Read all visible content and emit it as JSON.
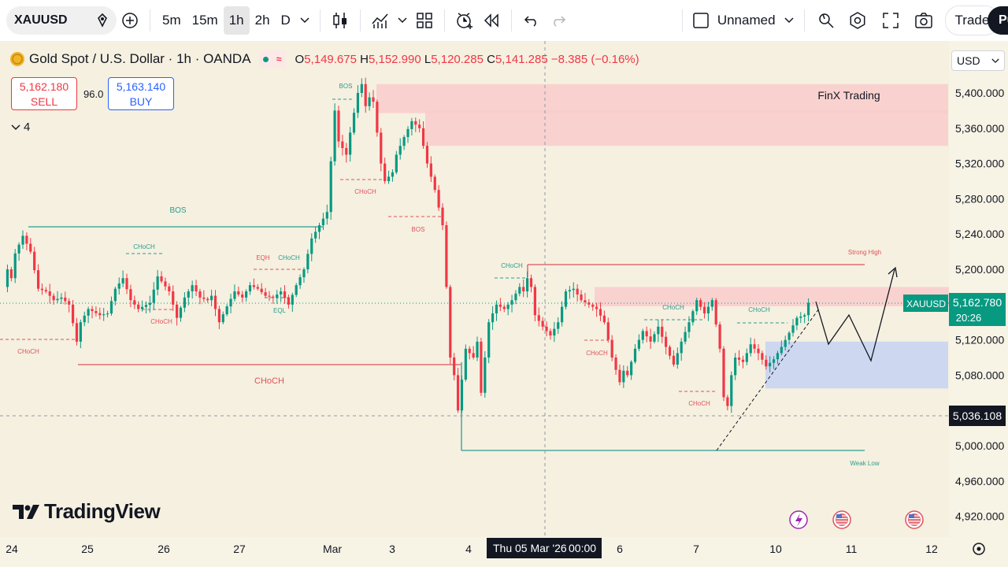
{
  "toolbar": {
    "symbol": "XAUUSD",
    "timeframes": [
      "5m",
      "15m",
      "1h",
      "2h",
      "D"
    ],
    "active_timeframe": "1h",
    "layout_name": "Unnamed",
    "trade_label": "Trade",
    "publish_label": "Pu",
    "icons": [
      "search-icon",
      "add-symbol-icon",
      "chevron-down-icon",
      "candles-icon",
      "indicators-icon",
      "chevron-down-icon",
      "layouts-icon",
      "alert-icon",
      "replay-icon",
      "undo-icon",
      "redo-icon",
      "checkbox-icon",
      "chevron-down-icon",
      "quick-search-icon",
      "settings-icon",
      "fullscreen-icon",
      "camera-icon"
    ]
  },
  "legend": {
    "title": "Gold Spot / U.S. Dollar · 1h · OANDA",
    "open_label": "O",
    "open": "5,149.675",
    "high_label": "H",
    "high": "5,152.990",
    "low_label": "L",
    "low": "5,120.285",
    "close_label": "C",
    "close": "5,141.285",
    "change": "−8.385 (−0.16%)",
    "collapse_count": "4"
  },
  "trade_panel": {
    "sell_price": "5,162.180",
    "sell_label": "SELL",
    "spread": "96.0",
    "buy_price": "5,163.140",
    "buy_label": "BUY"
  },
  "currency": "USD",
  "price_scale": {
    "ticks": [
      "5,400.000",
      "5,360.000",
      "5,320.000",
      "5,280.000",
      "5,240.000",
      "5,200.000",
      "5,120.000",
      "5,080.000",
      "5,000.000",
      "4,960.000",
      "4,920.000"
    ],
    "current_price_symbol": "XAUUSD",
    "current_price": "5,162.780",
    "countdown": "20:26",
    "crosshair_price": "5,036.108"
  },
  "time_scale": {
    "ticks": [
      "24",
      "25",
      "26",
      "27",
      "Mar",
      "3",
      "4",
      "6",
      "7",
      "10",
      "11",
      "12"
    ],
    "crosshair_time": "Thu 05 Mar '26",
    "crosshair_time_hour": "00:00"
  },
  "logo_text": "TradingView",
  "colors": {
    "up": "#089981",
    "down": "#f23645",
    "supply_zone": "#f9cdcd",
    "demand_zone": "#c9d4f2",
    "background": "#f5f0e0"
  },
  "chart_data": {
    "type": "candlestick",
    "instrument": "XAUUSD",
    "interval": "1h",
    "ylim": [
      4910,
      5420
    ],
    "y_ticks": [
      5400,
      5360,
      5320,
      5280,
      5240,
      5200,
      5120,
      5080,
      5000,
      4960,
      4920
    ],
    "x_labels": [
      "24",
      "25",
      "26",
      "27",
      "Mar",
      "3",
      "4",
      "6",
      "7",
      "10",
      "11",
      "12"
    ],
    "last_close": 5162.78,
    "path": [
      [
        0.0,
        5180
      ],
      [
        0.5,
        5200
      ],
      [
        1.0,
        5190
      ],
      [
        1.5,
        5218
      ],
      [
        2.5,
        5238
      ],
      [
        3.5,
        5220
      ],
      [
        4.5,
        5178
      ],
      [
        5.5,
        5175
      ],
      [
        6.5,
        5165
      ],
      [
        7.5,
        5168
      ],
      [
        8.5,
        5160
      ],
      [
        9.5,
        5118
      ],
      [
        10.0,
        5140
      ],
      [
        11.0,
        5155
      ],
      [
        12.5,
        5148
      ],
      [
        13.5,
        5150
      ],
      [
        14.5,
        5178
      ],
      [
        15.5,
        5190
      ],
      [
        16.5,
        5165
      ],
      [
        17.5,
        5155
      ],
      [
        19.0,
        5162
      ],
      [
        20.0,
        5192
      ],
      [
        21.5,
        5175
      ],
      [
        22.5,
        5145
      ],
      [
        23.5,
        5168
      ],
      [
        24.5,
        5182
      ],
      [
        25.5,
        5168
      ],
      [
        26.5,
        5165
      ],
      [
        27.0,
        5170
      ],
      [
        28.0,
        5140
      ],
      [
        29.0,
        5158
      ],
      [
        30.0,
        5175
      ],
      [
        31.0,
        5168
      ],
      [
        32.0,
        5182
      ],
      [
        33.0,
        5178
      ],
      [
        34.0,
        5170
      ],
      [
        35.0,
        5168
      ],
      [
        36.0,
        5175
      ],
      [
        37.0,
        5160
      ],
      [
        38.0,
        5182
      ],
      [
        39.0,
        5200
      ],
      [
        40.0,
        5235
      ],
      [
        41.0,
        5250
      ],
      [
        42.0,
        5265
      ],
      [
        43.0,
        5380
      ],
      [
        43.5,
        5345
      ],
      [
        44.5,
        5330
      ],
      [
        45.0,
        5355
      ],
      [
        46.0,
        5400
      ],
      [
        46.5,
        5410
      ],
      [
        47.0,
        5385
      ],
      [
        47.5,
        5395
      ],
      [
        48.0,
        5390
      ],
      [
        49.0,
        5320
      ],
      [
        49.5,
        5300
      ],
      [
        50.5,
        5310
      ],
      [
        51.0,
        5330
      ],
      [
        52.0,
        5350
      ],
      [
        53.0,
        5368
      ],
      [
        54.0,
        5360
      ],
      [
        55.0,
        5320
      ],
      [
        56.0,
        5290
      ],
      [
        57.0,
        5250
      ],
      [
        57.5,
        5180
      ],
      [
        58.0,
        5100
      ],
      [
        58.5,
        5080
      ],
      [
        59.0,
        5040
      ],
      [
        60.0,
        5110
      ],
      [
        61.0,
        5100
      ],
      [
        61.5,
        5118
      ],
      [
        62.0,
        5060
      ],
      [
        63.0,
        5140
      ],
      [
        64.0,
        5160
      ],
      [
        65.0,
        5155
      ],
      [
        66.0,
        5165
      ],
      [
        67.0,
        5180
      ],
      [
        67.5,
        5175
      ],
      [
        68.0,
        5190
      ],
      [
        68.5,
        5180
      ],
      [
        69.0,
        5148
      ],
      [
        70.0,
        5135
      ],
      [
        71.0,
        5125
      ],
      [
        72.0,
        5140
      ],
      [
        73.0,
        5175
      ],
      [
        74.0,
        5178
      ],
      [
        75.0,
        5165
      ],
      [
        76.0,
        5160
      ],
      [
        77.0,
        5155
      ],
      [
        78.0,
        5140
      ],
      [
        79.0,
        5100
      ],
      [
        80.0,
        5072
      ],
      [
        80.5,
        5085
      ],
      [
        81.0,
        5080
      ],
      [
        82.0,
        5110
      ],
      [
        83.0,
        5130
      ],
      [
        84.0,
        5118
      ],
      [
        85.0,
        5135
      ],
      [
        86.0,
        5112
      ],
      [
        87.0,
        5092
      ],
      [
        88.0,
        5118
      ],
      [
        89.0,
        5140
      ],
      [
        90.0,
        5165
      ],
      [
        91.0,
        5150
      ],
      [
        92.0,
        5165
      ],
      [
        93.0,
        5110
      ],
      [
        93.5,
        5055
      ],
      [
        94.0,
        5045
      ],
      [
        94.5,
        5080
      ],
      [
        95.0,
        5100
      ],
      [
        96.0,
        5095
      ],
      [
        97.0,
        5115
      ],
      [
        98.0,
        5105
      ],
      [
        99.0,
        5090
      ],
      [
        100.0,
        5098
      ],
      [
        101.0,
        5112
      ],
      [
        102.0,
        5128
      ],
      [
        103.0,
        5145
      ],
      [
        104.0,
        5148
      ],
      [
        104.5,
        5162
      ]
    ],
    "annotations": {
      "labels": [
        "BOS",
        "CHoCH",
        "CHoCH",
        "EQH",
        "CHoCH",
        "EQL",
        "CHoCH",
        "BOS",
        "CHoCH",
        "BOS",
        "CHoCH",
        "CHoCH",
        "CHoCH",
        "CHoCH",
        "CHoCH",
        "CHoCH",
        "Strong High",
        "Weak Low"
      ],
      "zones": [
        {
          "type": "supply",
          "label": "FinX Trading",
          "from": 5377,
          "to": 5410
        },
        {
          "type": "supply",
          "from": 5340,
          "to": 5380
        },
        {
          "type": "supply",
          "from": 5158,
          "to": 5180
        },
        {
          "type": "demand",
          "from": 5065,
          "to": 5118
        }
      ],
      "levels": [
        {
          "label": "Strong High",
          "price": 5205
        },
        {
          "label": "Weak Low",
          "price": 4997
        }
      ]
    }
  }
}
